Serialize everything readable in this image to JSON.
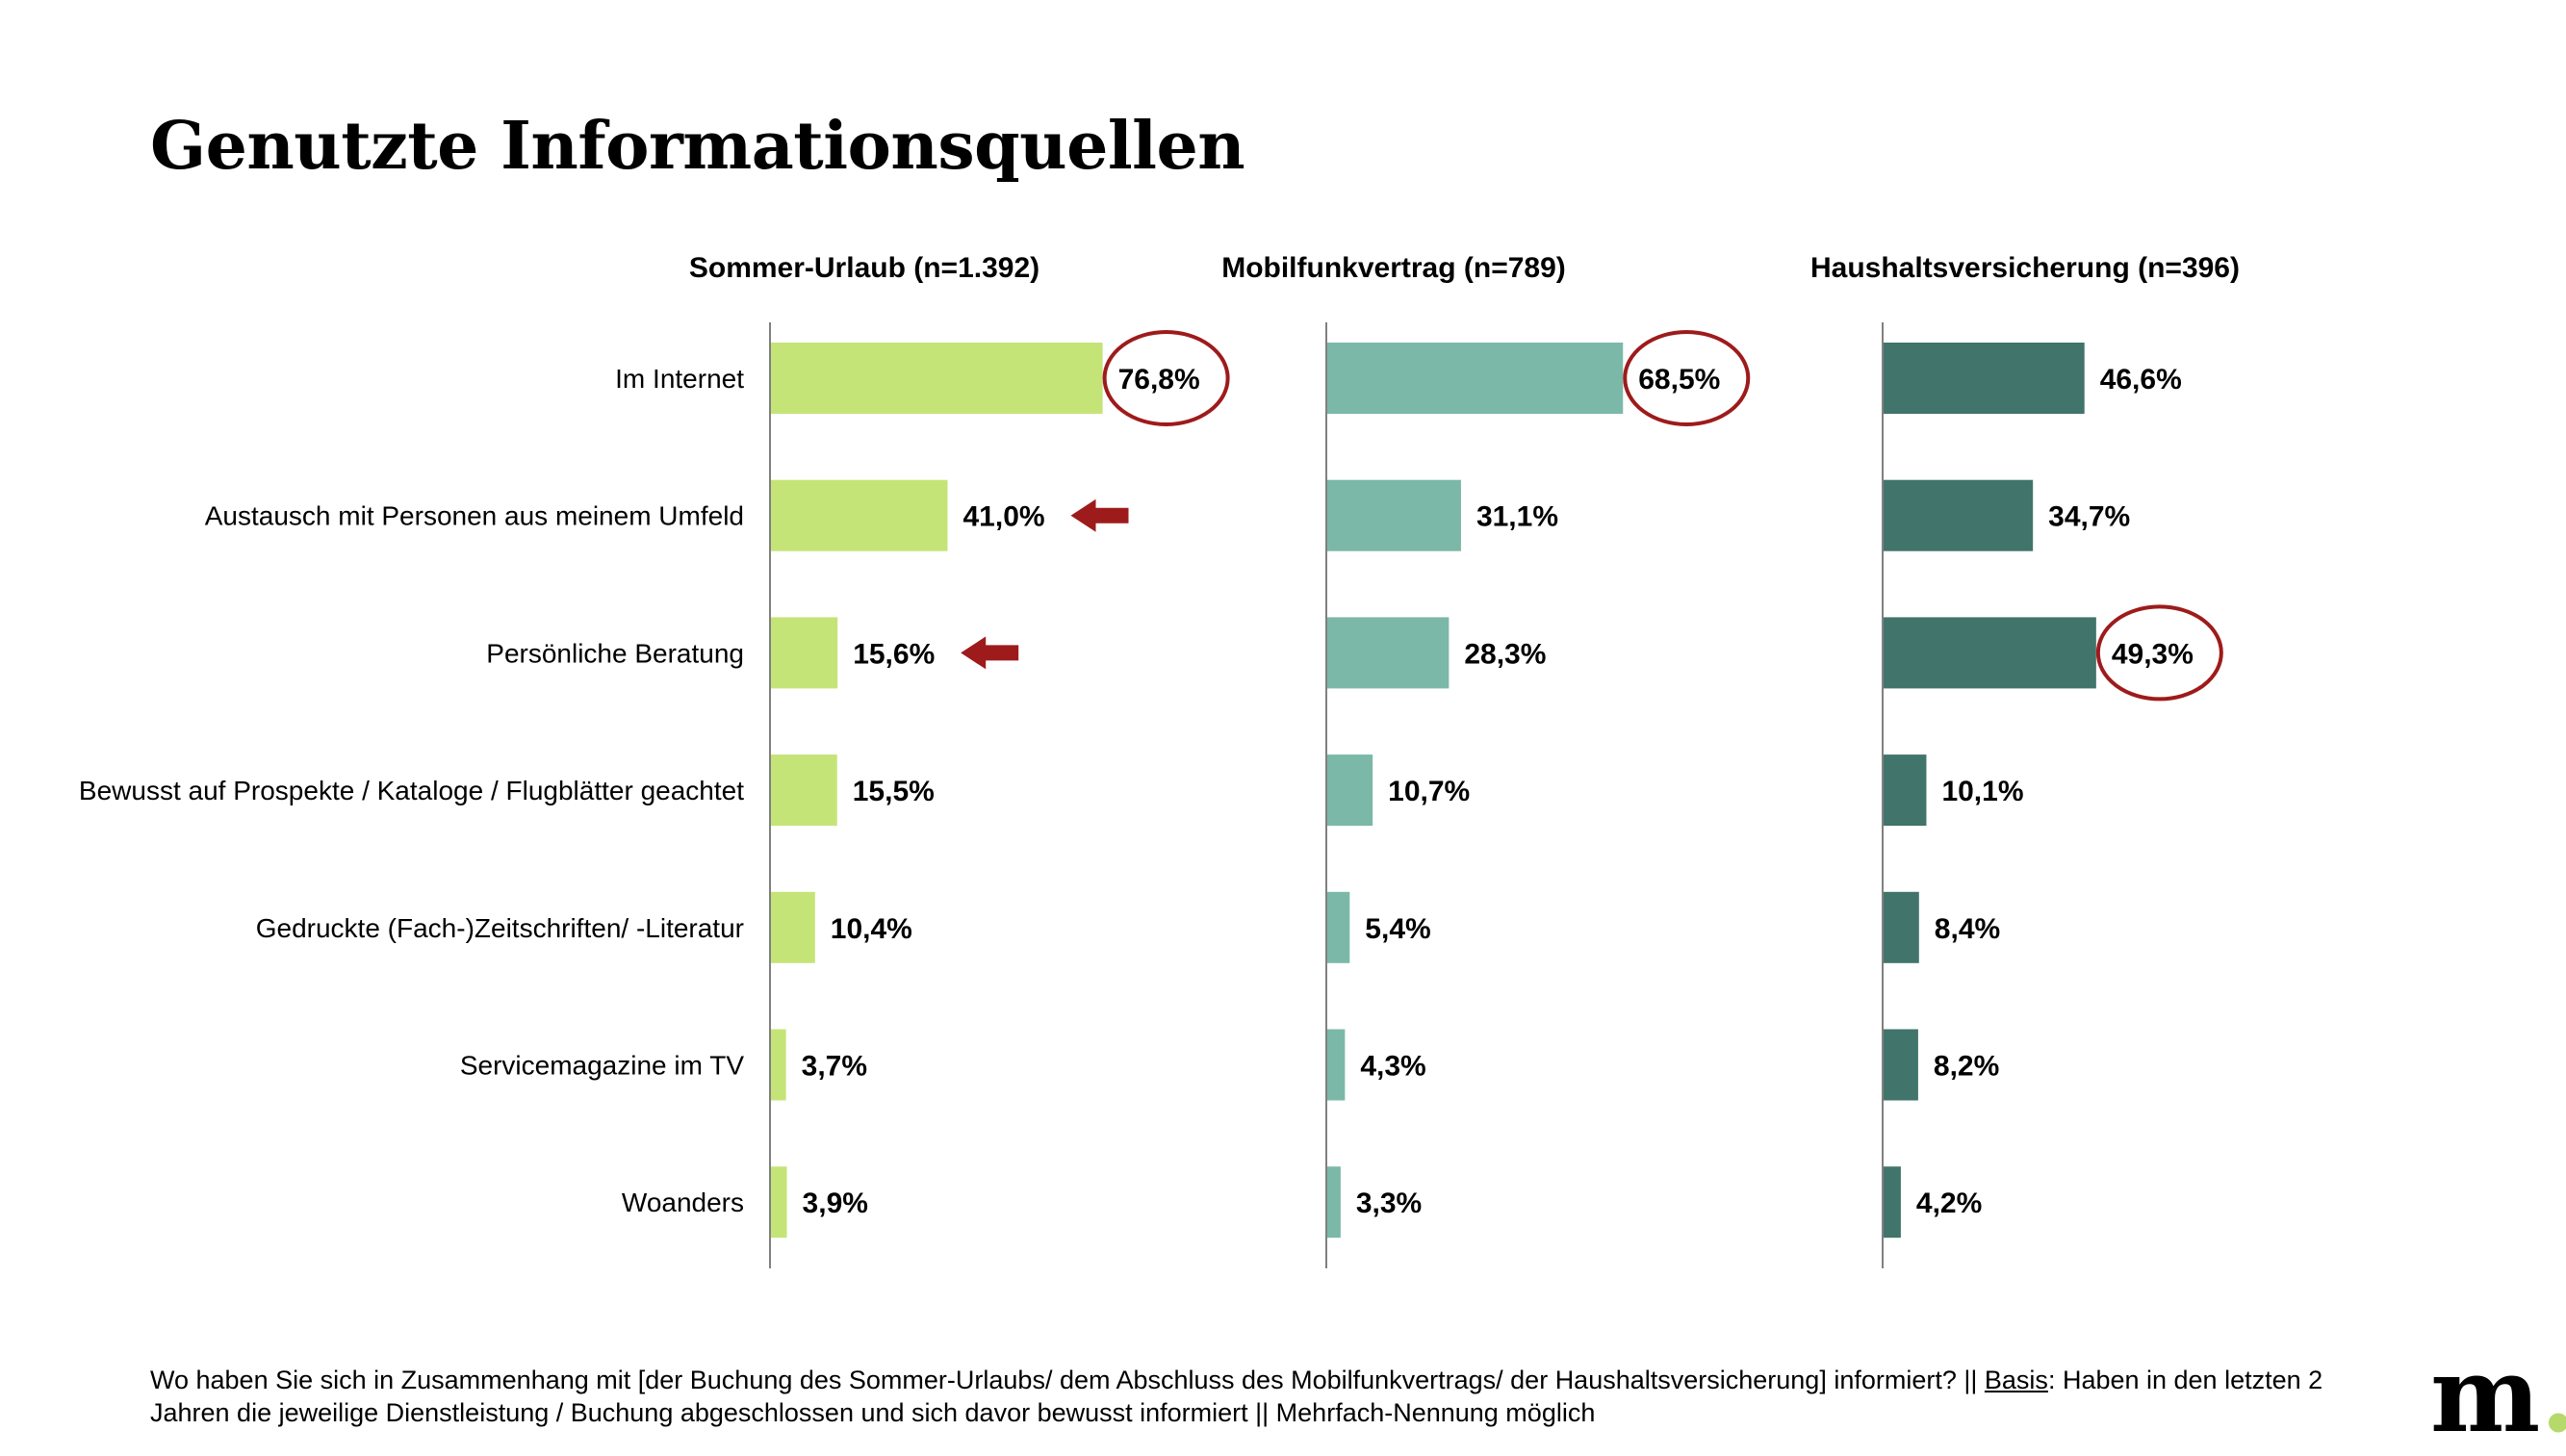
{
  "page": {
    "title": "Genutzte Informationsquellen",
    "footnote_before": "Wo haben Sie sich in Zusammenhang mit [der Buchung des Sommer-Urlaubs/ dem Abschluss des Mobilfunkvertrags/ der Haushaltsversicherung] informiert? || ",
    "footnote_basis": "Basis",
    "footnote_after": ": Haben in den letzten 2 Jahren die jeweilige Dienstleistung / Buchung abgeschlossen und sich davor bewusst informiert || Mehrfach-Nennung möglich",
    "logo_letter": "m",
    "logo_dot": "."
  },
  "colors": {
    "sommer": "#c5e478",
    "mobil": "#7bb8a8",
    "haushalt": "#41746a",
    "highlight": "#9e1b1b",
    "axis": "#808080"
  },
  "chart_data": {
    "type": "bar",
    "orientation": "horizontal",
    "categories": [
      "Im Internet",
      "Austausch mit Personen aus meinem Umfeld",
      "Persönliche Beratung",
      "Bewusst auf Prospekte / Kataloge / Flugblätter geachtet",
      "Gedruckte (Fach-)Zeitschriften/ -Literatur",
      "Servicemagazine im TV",
      "Woanders"
    ],
    "series": [
      {
        "name": "Sommer-Urlaub (n=1.392)",
        "values": [
          76.8,
          41.0,
          15.6,
          15.5,
          10.4,
          3.7,
          3.9
        ],
        "labels": [
          "76,8%",
          "41,0%",
          "15,6%",
          "15,5%",
          "10,4%",
          "3,7%",
          "3,9%"
        ],
        "circled": [
          0
        ],
        "arrows": [
          1,
          2
        ]
      },
      {
        "name": "Mobilfunkvertrag (n=789)",
        "values": [
          68.5,
          31.1,
          28.3,
          10.7,
          5.4,
          4.3,
          3.3
        ],
        "labels": [
          "68,5%",
          "31,1%",
          "28,3%",
          "10,7%",
          "5,4%",
          "4,3%",
          "3,3%"
        ],
        "circled": [
          0
        ],
        "arrows": []
      },
      {
        "name": "Haushaltsversicherung (n=396)",
        "values": [
          46.6,
          34.7,
          49.3,
          10.1,
          8.4,
          8.2,
          4.2
        ],
        "labels": [
          "46,6%",
          "34,7%",
          "49,3%",
          "10,1%",
          "8,4%",
          "8,2%",
          "4,2%"
        ],
        "circled": [
          2
        ],
        "arrows": []
      }
    ],
    "xlim": [
      0,
      100
    ],
    "grid": false,
    "legend": "none"
  }
}
